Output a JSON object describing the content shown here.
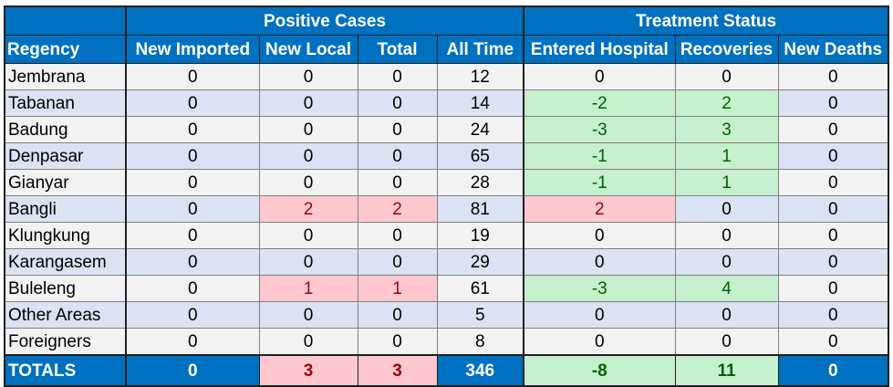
{
  "groups": {
    "positive_cases": "Positive Cases",
    "treatment_status": "Treatment Status"
  },
  "columns": [
    "Regency",
    "New Imported",
    "New Local",
    "Total",
    "All Time",
    "Entered Hospital",
    "Recoveries",
    "New Deaths"
  ],
  "rows": [
    {
      "regency": "Jembrana",
      "new_imported": "0",
      "new_local": "0",
      "total": "0",
      "all_time": "12",
      "entered_hospital": "0",
      "recoveries": "0",
      "new_deaths": "0"
    },
    {
      "regency": "Tabanan",
      "new_imported": "0",
      "new_local": "0",
      "total": "0",
      "all_time": "14",
      "entered_hospital": "-2",
      "recoveries": "2",
      "new_deaths": "0"
    },
    {
      "regency": "Badung",
      "new_imported": "0",
      "new_local": "0",
      "total": "0",
      "all_time": "24",
      "entered_hospital": "-3",
      "recoveries": "3",
      "new_deaths": "0"
    },
    {
      "regency": "Denpasar",
      "new_imported": "0",
      "new_local": "0",
      "total": "0",
      "all_time": "65",
      "entered_hospital": "-1",
      "recoveries": "1",
      "new_deaths": "0"
    },
    {
      "regency": "Gianyar",
      "new_imported": "0",
      "new_local": "0",
      "total": "0",
      "all_time": "28",
      "entered_hospital": "-1",
      "recoveries": "1",
      "new_deaths": "0"
    },
    {
      "regency": "Bangli",
      "new_imported": "0",
      "new_local": "2",
      "total": "2",
      "all_time": "81",
      "entered_hospital": "2",
      "recoveries": "0",
      "new_deaths": "0"
    },
    {
      "regency": "Klungkung",
      "new_imported": "0",
      "new_local": "0",
      "total": "0",
      "all_time": "19",
      "entered_hospital": "0",
      "recoveries": "0",
      "new_deaths": "0"
    },
    {
      "regency": "Karangasem",
      "new_imported": "0",
      "new_local": "0",
      "total": "0",
      "all_time": "29",
      "entered_hospital": "0",
      "recoveries": "0",
      "new_deaths": "0"
    },
    {
      "regency": "Buleleng",
      "new_imported": "0",
      "new_local": "1",
      "total": "1",
      "all_time": "61",
      "entered_hospital": "-3",
      "recoveries": "4",
      "new_deaths": "0"
    },
    {
      "regency": "Other Areas",
      "new_imported": "0",
      "new_local": "0",
      "total": "0",
      "all_time": "5",
      "entered_hospital": "0",
      "recoveries": "0",
      "new_deaths": "0"
    },
    {
      "regency": "Foreigners",
      "new_imported": "0",
      "new_local": "0",
      "total": "0",
      "all_time": "8",
      "entered_hospital": "0",
      "recoveries": "0",
      "new_deaths": "0"
    }
  ],
  "totals": {
    "label": "TOTALS",
    "new_imported": "0",
    "new_local": "3",
    "total": "3",
    "all_time": "346",
    "entered_hospital": "-8",
    "recoveries": "11",
    "new_deaths": "0"
  },
  "colors": {
    "header_blue": "#0070c0",
    "row_light": "#f2f2f2",
    "row_blue": "#dae3f3",
    "increase_pink": "#ffc7ce",
    "increase_text": "#9c0006",
    "decrease_green": "#c6efce",
    "decrease_text": "#006100"
  }
}
